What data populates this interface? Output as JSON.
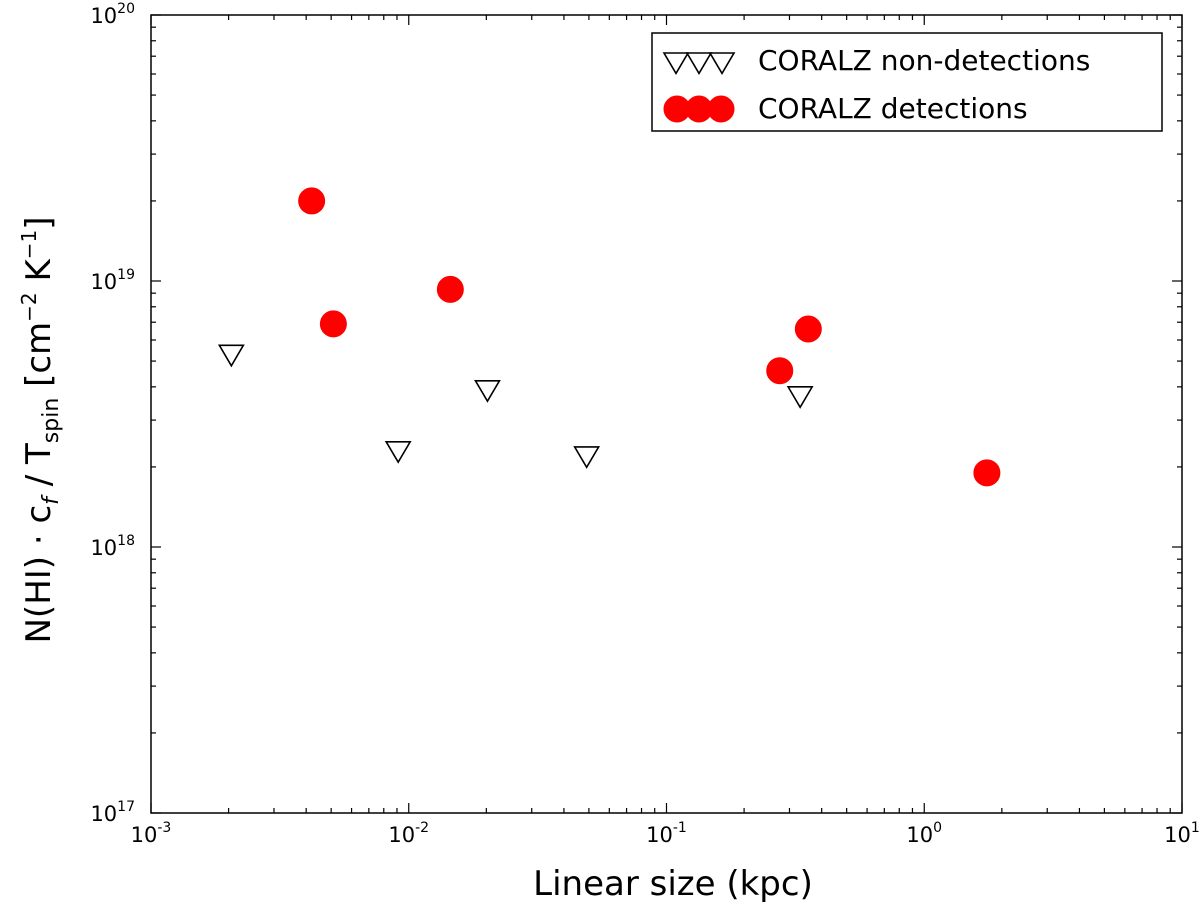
{
  "chart_data": {
    "type": "scatter",
    "xscale": "log",
    "yscale": "log",
    "xlim": [
      0.001,
      10
    ],
    "ylim": [
      1e+17,
      1e+20
    ],
    "xlabel": "Linear size (kpc)",
    "ylabel": {
      "main": "N(HI) · c",
      "sub_f": "f",
      "mid": " / T",
      "sub_spin": "spin",
      "unit_open": " [cm",
      "exp_neg2": "−2",
      "unit_k": " K",
      "exp_neg1": "−1",
      "unit_close": "]"
    },
    "x_ticks": [
      {
        "base": "10",
        "exp": "-3"
      },
      {
        "base": "10",
        "exp": "-2"
      },
      {
        "base": "10",
        "exp": "-1"
      },
      {
        "base": "10",
        "exp": "0"
      },
      {
        "base": "10",
        "exp": "1"
      }
    ],
    "y_ticks": [
      {
        "base": "10",
        "exp": "17"
      },
      {
        "base": "10",
        "exp": "18"
      },
      {
        "base": "10",
        "exp": "19"
      },
      {
        "base": "10",
        "exp": "20"
      }
    ],
    "x_tick_values": [
      0.001,
      0.01,
      0.1,
      1,
      10
    ],
    "y_tick_values": [
      1e+17,
      1e+18,
      1e+19,
      1e+20
    ],
    "legend_position": "top-right",
    "series": [
      {
        "name": "CORALZ non-detections",
        "marker": "triangle-down-open",
        "color": "#000000",
        "points": [
          {
            "x": 0.00205,
            "y": 5.3e+18
          },
          {
            "x": 0.0091,
            "y": 2.3e+18
          },
          {
            "x": 0.0202,
            "y": 3.9e+18
          },
          {
            "x": 0.049,
            "y": 2.2e+18
          },
          {
            "x": 0.33,
            "y": 3.7e+18
          }
        ]
      },
      {
        "name": "CORALZ detections",
        "marker": "circle-filled",
        "color": "#ff0000",
        "points": [
          {
            "x": 0.0042,
            "y": 2e+19
          },
          {
            "x": 0.0051,
            "y": 6.9e+18
          },
          {
            "x": 0.0145,
            "y": 9.3e+18
          },
          {
            "x": 0.275,
            "y": 4.6e+18
          },
          {
            "x": 0.355,
            "y": 6.6e+18
          },
          {
            "x": 1.75,
            "y": 1.9e+18
          }
        ]
      }
    ]
  }
}
